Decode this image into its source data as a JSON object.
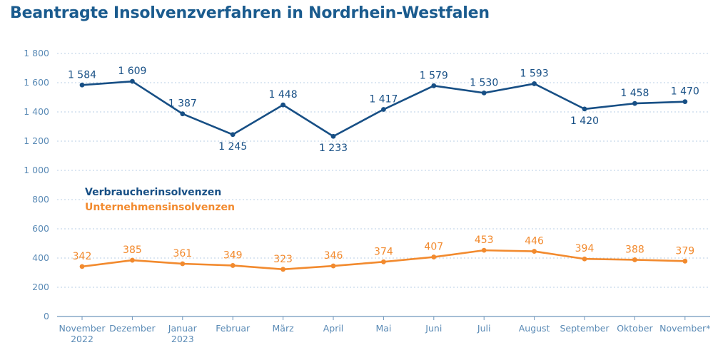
{
  "title": "Beantragte Insolvenzverfahren in Nordrhein-Westfalen",
  "chart_data": {
    "type": "line",
    "title": "Beantragte Insolvenzverfahren in Nordrhein-Westfalen",
    "categories": [
      [
        "November",
        "2022"
      ],
      [
        "Dezember"
      ],
      [
        "Januar",
        "2023"
      ],
      [
        "Februar"
      ],
      [
        "März"
      ],
      [
        "April"
      ],
      [
        "Mai"
      ],
      [
        "Juni"
      ],
      [
        "Juli"
      ],
      [
        "August"
      ],
      [
        "September"
      ],
      [
        "Oktober"
      ],
      [
        "November*"
      ]
    ],
    "series": [
      {
        "name": "Verbraucherinsolvenzen",
        "color": "#174f85",
        "values": [
          1584,
          1609,
          1387,
          1245,
          1448,
          1233,
          1417,
          1579,
          1530,
          1593,
          1420,
          1458,
          1470
        ],
        "value_labels": [
          "1 584",
          "1 609",
          "1 387",
          "1 245",
          "1 448",
          "1 233",
          "1 417",
          "1 579",
          "1 530",
          "1 593",
          "1 420",
          "1 458",
          "1 470"
        ],
        "label_position": [
          "above",
          "above",
          "above",
          "below",
          "above",
          "below",
          "above",
          "above",
          "above",
          "above",
          "below",
          "above",
          "above"
        ]
      },
      {
        "name": "Unternehmensinsolvenzen",
        "color": "#f28a2e",
        "values": [
          342,
          385,
          361,
          349,
          323,
          346,
          374,
          407,
          453,
          446,
          394,
          388,
          379
        ],
        "value_labels": [
          "342",
          "385",
          "361",
          "349",
          "323",
          "346",
          "374",
          "407",
          "453",
          "446",
          "394",
          "388",
          "379"
        ],
        "label_position": [
          "above",
          "above",
          "above",
          "above",
          "above",
          "above",
          "above",
          "above",
          "above",
          "above",
          "above",
          "above",
          "above"
        ]
      }
    ],
    "y_ticks": [
      0,
      200,
      400,
      600,
      800,
      1000,
      1200,
      1400,
      1600,
      1800
    ],
    "y_tick_labels": [
      "0",
      "200",
      "400",
      "600",
      "800",
      "1 000",
      "1 200",
      "1 400",
      "1 600",
      "1 800"
    ],
    "ylim": [
      0,
      1800
    ],
    "grid": true,
    "legend_position": "left-middle",
    "colors": {
      "grid": "#b8cfe4",
      "axis": "#6f96bc",
      "tick_text": "#5b8bb6"
    }
  }
}
